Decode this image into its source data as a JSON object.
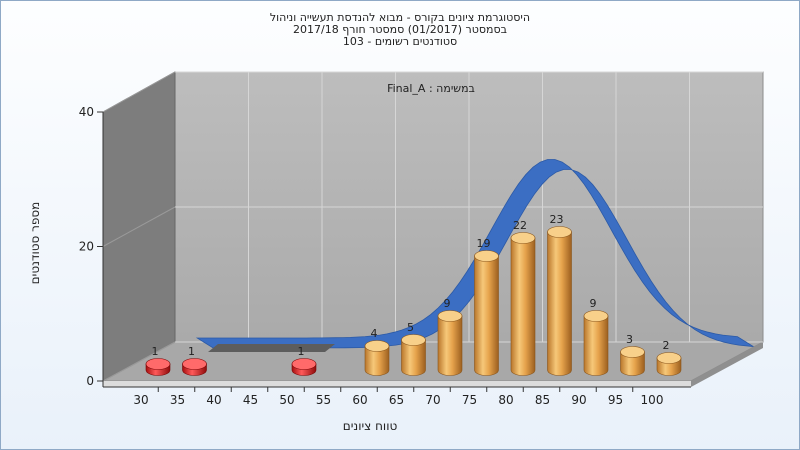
{
  "titles": {
    "line1": "היסטוגרמת ציונים בקורס - מבוא להנדסת תעשייה וניהול",
    "line2": "בסמסטר  (01/2017)  סמסטר חורף  2017/18",
    "line3": "סטודנטים רשומים - 103"
  },
  "chart_data": {
    "type": "bar",
    "subtitle": "במשימה : Final_A",
    "xlabel": "טווח ציונים",
    "ylabel": "מספר סטודנטים",
    "categories": [
      "30",
      "35",
      "40",
      "45",
      "50",
      "55",
      "60",
      "65",
      "70",
      "75",
      "80",
      "85",
      "90",
      "95",
      "100"
    ],
    "values": [
      1,
      1,
      null,
      null,
      1,
      null,
      4,
      5,
      9,
      19,
      22,
      23,
      9,
      3,
      2
    ],
    "fail_below": 55,
    "yticks": [
      0,
      20,
      40
    ],
    "ylim": [
      0,
      40
    ],
    "grid": true,
    "three_d": true,
    "distribution_curve": true,
    "colors": {
      "fail_bar": "#dd1a1a",
      "pass_bar": "#e8a84a",
      "curve": "#3b6ec3",
      "back_wall": "#b4b4b4",
      "side_wall": "#7a7a7a",
      "floor": "#a9a9a9"
    }
  }
}
